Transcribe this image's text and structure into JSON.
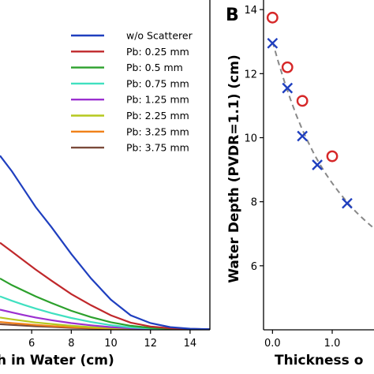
{
  "panel_b_letter": "B",
  "chart_data": [
    {
      "type": "line",
      "panel": "A",
      "xlabel": "Depth in Water (cm)",
      "xlabel_visible": "h in Water (cm)",
      "xlim": [
        4.4,
        15
      ],
      "xticks": [
        6,
        8,
        10,
        12,
        14
      ],
      "ylim": [
        0,
        1
      ],
      "legend_position": "top-right",
      "series": [
        {
          "name": "w/o Scatterer",
          "color": "#1f3fbf",
          "x": [
            4.4,
            5.0,
            5.6,
            6.2,
            7.0,
            8.0,
            9.0,
            10.0,
            11.0,
            12.0,
            13.0,
            14.0,
            15.0
          ],
          "y": [
            0.78,
            0.71,
            0.63,
            0.55,
            0.46,
            0.34,
            0.23,
            0.135,
            0.065,
            0.03,
            0.012,
            0.005,
            0.003
          ]
        },
        {
          "name": "Pb: 0.25 mm",
          "color": "#c0282b",
          "x": [
            4.4,
            5.0,
            5.6,
            6.2,
            7.0,
            8.0,
            9.0,
            10.0,
            11.0,
            12.0,
            13.0,
            14.0,
            15.0
          ],
          "y": [
            0.39,
            0.35,
            0.31,
            0.27,
            0.22,
            0.16,
            0.11,
            0.065,
            0.032,
            0.015,
            0.007,
            0.004,
            0.003
          ]
        },
        {
          "name": "Pb: 0.5 mm",
          "color": "#2ca02c",
          "x": [
            4.4,
            5.0,
            5.6,
            6.2,
            7.0,
            8.0,
            9.0,
            10.0,
            11.0,
            12.0,
            13.0,
            14.0,
            15.0
          ],
          "y": [
            0.23,
            0.2,
            0.175,
            0.15,
            0.12,
            0.085,
            0.057,
            0.034,
            0.018,
            0.009,
            0.005,
            0.003,
            0.003
          ]
        },
        {
          "name": "Pb: 0.75 mm",
          "color": "#40e0c0",
          "x": [
            4.4,
            5.0,
            5.6,
            6.2,
            7.0,
            8.0,
            9.0,
            10.0,
            11.0,
            12.0,
            13.0,
            14.0,
            15.0
          ],
          "y": [
            0.15,
            0.13,
            0.112,
            0.095,
            0.075,
            0.053,
            0.035,
            0.021,
            0.011,
            0.006,
            0.004,
            0.003,
            0.003
          ]
        },
        {
          "name": "Pb: 1.25 mm",
          "color": "#9b30d0",
          "x": [
            4.4,
            5.0,
            5.6,
            6.2,
            7.0,
            8.0,
            9.0,
            10.0,
            11.0,
            12.0,
            13.0,
            14.0,
            15.0
          ],
          "y": [
            0.09,
            0.078,
            0.066,
            0.055,
            0.043,
            0.03,
            0.02,
            0.012,
            0.007,
            0.004,
            0.003,
            0.003,
            0.003
          ]
        },
        {
          "name": "Pb: 2.25 mm",
          "color": "#b5c81e",
          "x": [
            4.4,
            5.0,
            5.6,
            6.2,
            7.0,
            8.0,
            9.0,
            10.0,
            11.0,
            12.0,
            13.0,
            14.0,
            15.0
          ],
          "y": [
            0.055,
            0.047,
            0.04,
            0.033,
            0.026,
            0.018,
            0.012,
            0.008,
            0.005,
            0.003,
            0.003,
            0.003,
            0.003
          ]
        },
        {
          "name": "Pb: 3.25 mm",
          "color": "#f08018",
          "x": [
            4.4,
            5.0,
            5.6,
            6.2,
            7.0,
            8.0,
            9.0,
            10.0,
            11.0,
            12.0,
            13.0,
            14.0,
            15.0
          ],
          "y": [
            0.035,
            0.03,
            0.026,
            0.022,
            0.017,
            0.012,
            0.008,
            0.006,
            0.004,
            0.003,
            0.003,
            0.003,
            0.003
          ]
        },
        {
          "name": "Pb: 3.75 mm",
          "color": "#7a4a3a",
          "x": [
            4.4,
            5.0,
            5.6,
            6.2,
            7.0,
            8.0,
            9.0,
            10.0,
            11.0,
            12.0,
            13.0,
            14.0,
            15.0
          ],
          "y": [
            0.025,
            0.022,
            0.019,
            0.016,
            0.013,
            0.009,
            0.006,
            0.005,
            0.004,
            0.003,
            0.003,
            0.003,
            0.003
          ]
        }
      ]
    },
    {
      "type": "scatter",
      "panel": "B",
      "xlabel_visible": "Thickness o",
      "ylabel": "Water Depth (PVDR=1.1) (cm)",
      "xlim": [
        -0.15,
        1.7
      ],
      "xticks": [
        0.0,
        1.0
      ],
      "xtick_labels": [
        "0.0",
        "1.0"
      ],
      "ylim": [
        4,
        14.3
      ],
      "yticks": [
        6,
        8,
        10,
        12,
        14
      ],
      "series": [
        {
          "marker": "circle",
          "color": "#d62728",
          "x": [
            0.0,
            0.25,
            0.5,
            1.0
          ],
          "y": [
            13.75,
            12.2,
            11.15,
            9.42
          ]
        },
        {
          "marker": "x",
          "color": "#1f3fbf",
          "x": [
            0.0,
            0.25,
            0.5,
            0.75,
            1.25
          ],
          "y": [
            12.95,
            11.55,
            10.05,
            9.15,
            7.95
          ]
        },
        {
          "marker": "dashed-fit",
          "color": "#888888",
          "x": [
            0.0,
            0.1,
            0.2,
            0.3,
            0.4,
            0.5,
            0.6,
            0.7,
            0.8,
            0.9,
            1.0,
            1.1,
            1.2,
            1.3,
            1.4,
            1.5,
            1.6,
            1.7
          ],
          "y": [
            13.0,
            12.35,
            11.75,
            11.2,
            10.7,
            10.25,
            9.85,
            9.48,
            9.15,
            8.85,
            8.58,
            8.33,
            8.1,
            7.88,
            7.68,
            7.5,
            7.33,
            7.17
          ]
        }
      ]
    }
  ]
}
